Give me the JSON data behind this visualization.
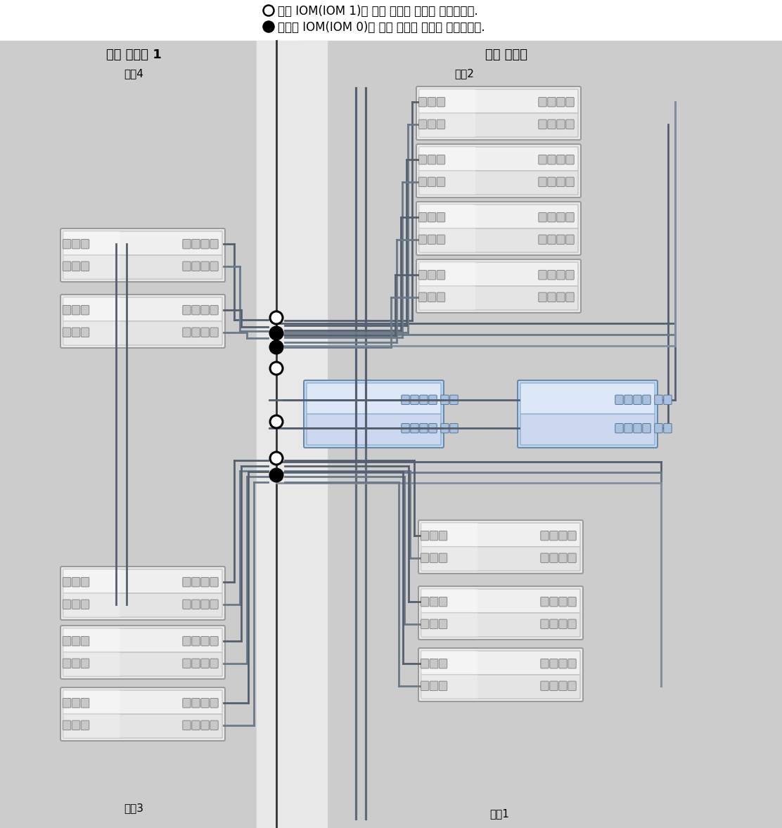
{
  "legend1": "위쪽 IOM(IOM 1)에 대한 케이블 연결을 나타냅니다.",
  "legend2": "아래쪽 IOM(IOM 0)에 대한 케이블 연결을 나타냅니다.",
  "left_title": "확장 캐비닛 1",
  "right_title": "기본 캐비닛",
  "chain4": "체인4",
  "chain3": "체인3",
  "chain2": "체인2",
  "chain1": "체인1",
  "bg_gray": "#cccccc",
  "bg_light_strip": "#e8e8e8",
  "shelf_outer": "#e8e8e8",
  "shelf_top_face": "#f0f0f0",
  "shelf_bot_face": "#e4e4e4",
  "shelf_shine": "#fafafa",
  "port_fill": "#c8c8c8",
  "port_edge": "#888888",
  "ctrl_outer": "#c0d4ec",
  "ctrl_top": "#dce8f8",
  "ctrl_bot": "#ccd8f0",
  "ctrl_port": "#aac0dc",
  "line_dark": "#555f6e",
  "line_mid": "#6a7888",
  "line_light": "#8090a0",
  "div_line": "#444444",
  "white": "#ffffff",
  "black": "#111111"
}
